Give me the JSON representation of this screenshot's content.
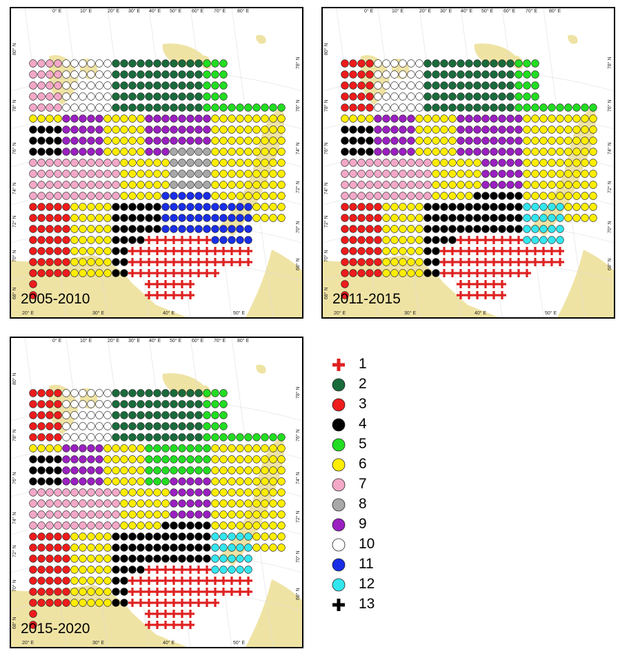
{
  "maps": [
    {
      "period": "2005-2010"
    },
    {
      "period": "2011-2015"
    },
    {
      "period": "2015-2020"
    }
  ],
  "lon_labels_top": [
    "0° E",
    "10° E",
    "20° E",
    "30° E",
    "40° E",
    "50° E",
    "60° E",
    "70° E",
    "80° E"
  ],
  "lon_labels_bottom": [
    "20° E",
    "30° E",
    "40° E",
    "50° E"
  ],
  "lat_labels_left": [
    "80° N",
    "78° N",
    "76° N",
    "74° N",
    "72° N",
    "70° N",
    "68° N"
  ],
  "lat_labels_right": [
    "78° N",
    "76° N",
    "74° N",
    "72° N",
    "70° N",
    "68° N"
  ],
  "legend": [
    {
      "label": "1",
      "marker": "cross",
      "color": "#e02020"
    },
    {
      "label": "2",
      "marker": "circle",
      "color": "#1a6b3c"
    },
    {
      "label": "3",
      "marker": "circle",
      "color": "#ee1c1c"
    },
    {
      "label": "4",
      "marker": "circle",
      "color": "#000000"
    },
    {
      "label": "5",
      "marker": "circle",
      "color": "#22dd22"
    },
    {
      "label": "6",
      "marker": "circle",
      "color": "#ffee00"
    },
    {
      "label": "7",
      "marker": "circle",
      "color": "#f4a8c8"
    },
    {
      "label": "8",
      "marker": "circle",
      "color": "#a8a8a8"
    },
    {
      "label": "9",
      "marker": "circle",
      "color": "#9a20c0"
    },
    {
      "label": "10",
      "marker": "circle",
      "color": "#ffffff"
    },
    {
      "label": "11",
      "marker": "circle",
      "color": "#1a2ee6"
    },
    {
      "label": "12",
      "marker": "circle",
      "color": "#33e6ee"
    },
    {
      "label": "13",
      "marker": "cross",
      "color": "#000000"
    }
  ],
  "land_color": "#efe3a4"
}
